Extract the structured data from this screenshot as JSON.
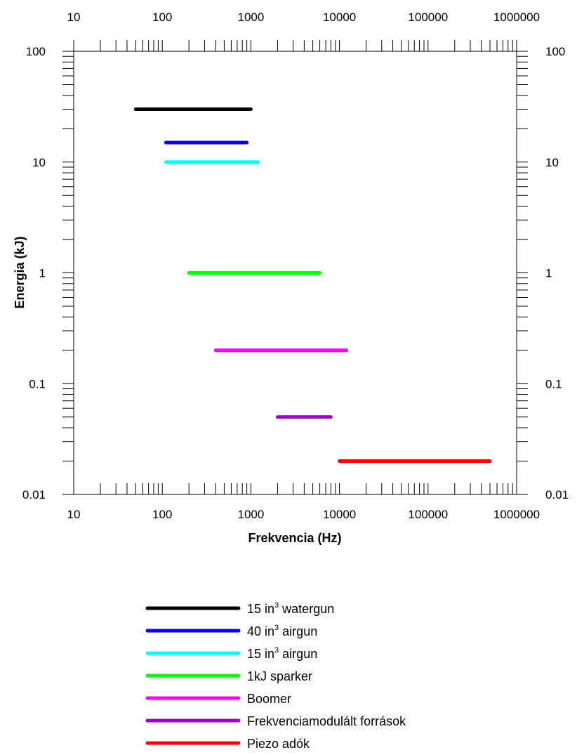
{
  "chart_data": {
    "type": "line",
    "title": "",
    "xlabel": "Frekvencia (Hz)",
    "ylabel": "Energia (kJ)",
    "xscale": "log",
    "yscale": "log",
    "xlim": [
      10,
      1000000
    ],
    "ylim": [
      0.01,
      100
    ],
    "x_ticks": [
      10,
      100,
      1000,
      10000,
      100000,
      1000000
    ],
    "x_tick_labels": [
      "10",
      "100",
      "1000",
      "10000",
      "100000",
      "1000000"
    ],
    "y_ticks": [
      0.01,
      0.1,
      1,
      10,
      100
    ],
    "y_tick_labels": [
      "0.01",
      "0.1",
      "1",
      "10",
      "100"
    ],
    "grid": false,
    "legend_position": "bottom",
    "series": [
      {
        "name": "15 in",
        "name_sup": "3",
        "name_suffix": " watergun",
        "color": "#000000",
        "x": [
          50,
          1000
        ],
        "y": [
          30,
          30
        ]
      },
      {
        "name": "40 in",
        "name_sup": "3",
        "name_suffix": " airgun",
        "color": "#0000ff",
        "x": [
          110,
          900
        ],
        "y": [
          15,
          15
        ]
      },
      {
        "name": "15 in",
        "name_sup": "3",
        "name_suffix": " airgun",
        "color": "#00ffff",
        "x": [
          110,
          1200
        ],
        "y": [
          10,
          10
        ]
      },
      {
        "name": "1kJ sparker",
        "name_sup": "",
        "name_suffix": "",
        "color": "#00ff00",
        "x": [
          200,
          6000
        ],
        "y": [
          1,
          1
        ]
      },
      {
        "name": "Boomer",
        "name_sup": "",
        "name_suffix": "",
        "color": "#ff00ff",
        "x": [
          400,
          12000
        ],
        "y": [
          0.2,
          0.2
        ]
      },
      {
        "name": "Frekvenciamodulált források",
        "name_sup": "",
        "name_suffix": "",
        "color": "#9900cc",
        "x": [
          2000,
          8000
        ],
        "y": [
          0.05,
          0.05
        ]
      },
      {
        "name": "Piezo adók",
        "name_sup": "",
        "name_suffix": "",
        "color": "#ff0000",
        "x": [
          10000,
          500000
        ],
        "y": [
          0.02,
          0.02
        ]
      }
    ]
  }
}
